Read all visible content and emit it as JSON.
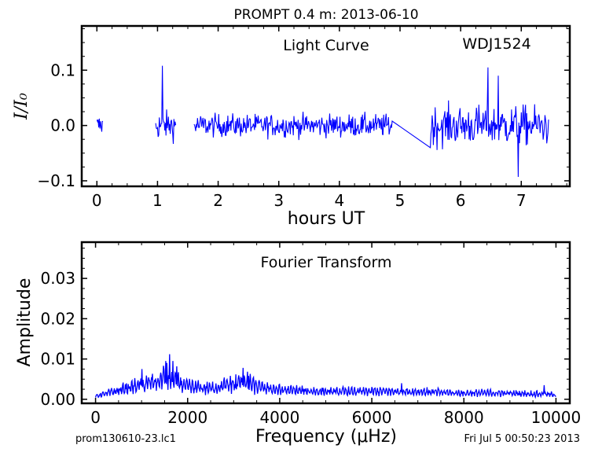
{
  "figure": {
    "title": "PROMPT 0.4 m:  2013-06-10",
    "footer_left": "prom130610-23.lc1",
    "footer_right": "Fri Jul  5 00:50:23 2013"
  },
  "chart_data": [
    {
      "type": "line",
      "title": "Light Curve",
      "annotation": "WDJ1524",
      "xlabel": "hours UT",
      "ylabel": "I/I₀",
      "xlim": [
        -0.25,
        7.8
      ],
      "ylim": [
        -0.11,
        0.18
      ],
      "xticks": [
        0,
        1,
        2,
        3,
        4,
        5,
        6,
        7
      ],
      "xtick_labels": [
        "0",
        "1",
        "2",
        "3",
        "4",
        "5",
        "6",
        "7"
      ],
      "yticks": [
        -0.1,
        0.0,
        0.1
      ],
      "ytick_labels": [
        "−0.1",
        "0.0",
        "0.1"
      ],
      "color": "#0000ff",
      "grid": false,
      "segments": [
        {
          "start": 0.0,
          "end": 0.1,
          "step": 0.01,
          "amplitude": 0.02
        },
        {
          "start": 0.97,
          "end": 1.3,
          "step": 0.01,
          "amplitude": 0.025
        },
        {
          "start": 1.6,
          "end": 4.87,
          "step": 0.01,
          "amplitude": 0.02
        },
        {
          "start": 5.5,
          "end": 7.45,
          "step": 0.01,
          "amplitude": 0.035
        }
      ],
      "notable_points": [
        {
          "x": 1.08,
          "y": 0.108
        },
        {
          "x": 4.87,
          "y": 0.008
        },
        {
          "x": 5.5,
          "y": -0.04
        },
        {
          "x": 6.45,
          "y": 0.105
        },
        {
          "x": 6.62,
          "y": 0.09
        },
        {
          "x": 6.95,
          "y": -0.093
        }
      ]
    },
    {
      "type": "line",
      "title": "Fourier Transform",
      "xlabel": "Frequency (μHz)",
      "ylabel": "Amplitude",
      "xlim": [
        -300,
        10300
      ],
      "ylim": [
        -0.001,
        0.039
      ],
      "xticks": [
        0,
        2000,
        4000,
        6000,
        8000,
        10000
      ],
      "xtick_labels": [
        "0",
        "2000",
        "4000",
        "6000",
        "8000",
        "10000"
      ],
      "yticks": [
        0.0,
        0.01,
        0.02,
        0.03
      ],
      "ytick_labels": [
        "0.00",
        "0.01",
        "0.02",
        "0.03"
      ],
      "color": "#0000ff",
      "grid": false,
      "envelope": [
        [
          0,
          0.001
        ],
        [
          400,
          0.0025
        ],
        [
          800,
          0.004
        ],
        [
          1100,
          0.005
        ],
        [
          1400,
          0.006
        ],
        [
          1600,
          0.008
        ],
        [
          1750,
          0.006
        ],
        [
          2000,
          0.004
        ],
        [
          2500,
          0.0035
        ],
        [
          3000,
          0.005
        ],
        [
          3200,
          0.006
        ],
        [
          3500,
          0.004
        ],
        [
          4000,
          0.003
        ],
        [
          5000,
          0.0025
        ],
        [
          6000,
          0.0025
        ],
        [
          7000,
          0.0025
        ],
        [
          8000,
          0.002
        ],
        [
          9000,
          0.002
        ],
        [
          10000,
          0.0015
        ]
      ],
      "peaks": [
        [
          1010,
          0.0075
        ],
        [
          1520,
          0.0095
        ],
        [
          1605,
          0.0112
        ],
        [
          1680,
          0.0095
        ],
        [
          1770,
          0.0082
        ],
        [
          3050,
          0.0062
        ],
        [
          3200,
          0.0078
        ],
        [
          3330,
          0.0058
        ],
        [
          6650,
          0.004
        ],
        [
          9750,
          0.0035
        ]
      ]
    }
  ]
}
